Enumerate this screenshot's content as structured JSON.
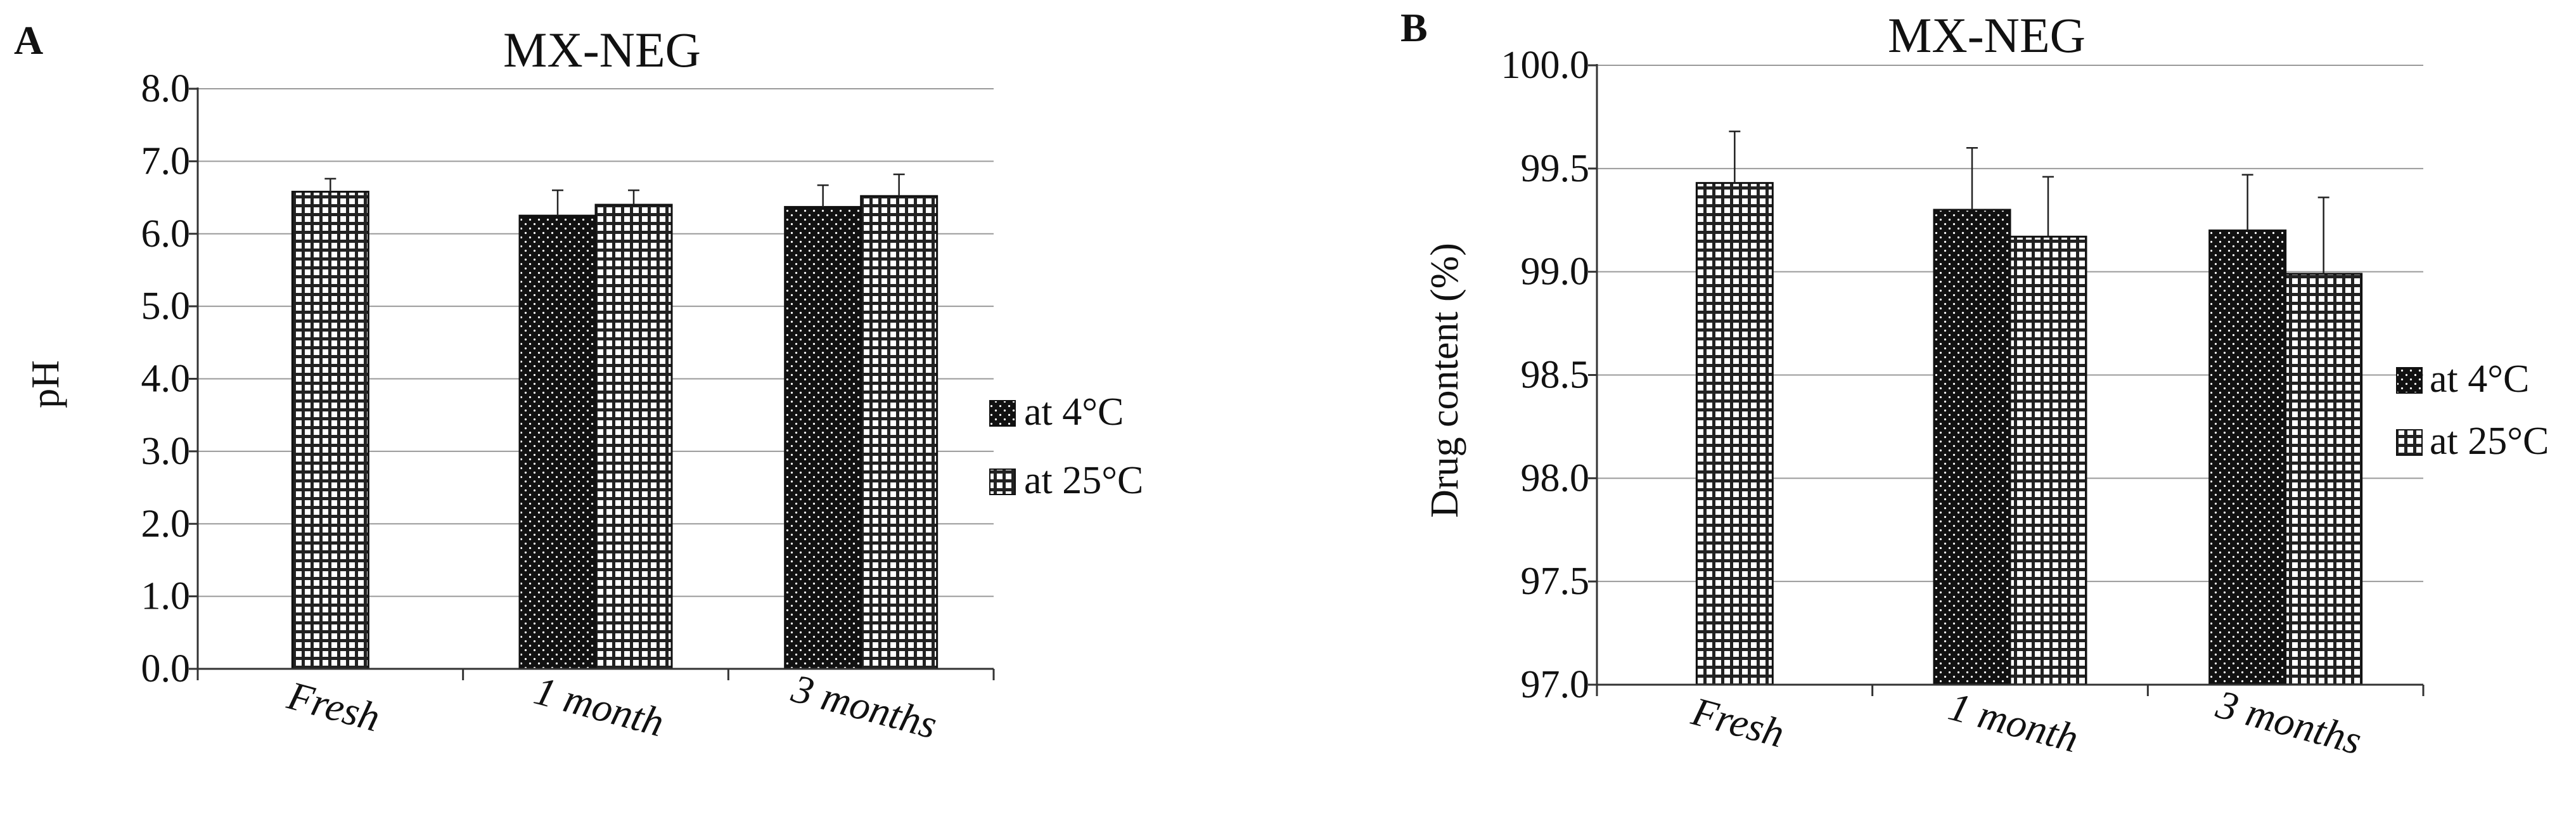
{
  "colors": {
    "axis": "#333333",
    "grid": "#9a9a9a",
    "cold_fill": "#111111",
    "room_fill": "#ffffff"
  },
  "chart_data": [
    {
      "type": "bar",
      "panel_label": "A",
      "title": "MX-NEG",
      "xlabel": "",
      "ylabel": "pH",
      "ylim": [
        0.0,
        8.0
      ],
      "yticks": [
        "0.0",
        "1.0",
        "2.0",
        "3.0",
        "4.0",
        "5.0",
        "6.0",
        "7.0",
        "8.0"
      ],
      "grid": true,
      "categories": [
        "Fresh",
        "1 month",
        "3 months"
      ],
      "series": [
        {
          "name": "at 4°C",
          "values": [
            null,
            6.25,
            6.37
          ],
          "errors": [
            null,
            0.35,
            0.3
          ]
        },
        {
          "name": "at 25°C",
          "values": [
            6.58,
            6.4,
            6.52
          ],
          "errors": [
            0.18,
            0.2,
            0.3
          ]
        }
      ],
      "legend": [
        "at 4°C",
        "at 25°C"
      ],
      "legend_position": "right"
    },
    {
      "type": "bar",
      "panel_label": "B",
      "title": "MX-NEG",
      "xlabel": "",
      "ylabel": "Drug content (%)",
      "ylim": [
        97.0,
        100.0
      ],
      "yticks": [
        "97.0",
        "97.5",
        "98.0",
        "98.5",
        "99.0",
        "99.5",
        "100.0"
      ],
      "grid": true,
      "categories": [
        "Fresh",
        "1 month",
        "3 months"
      ],
      "series": [
        {
          "name": "at 4°C",
          "values": [
            null,
            99.3,
            99.2
          ],
          "errors": [
            null,
            0.3,
            0.27
          ]
        },
        {
          "name": "at 25°C",
          "values": [
            99.43,
            99.17,
            98.99
          ],
          "errors": [
            0.25,
            0.29,
            0.37
          ]
        }
      ],
      "legend": [
        "at 4°C",
        "at 25°C"
      ],
      "legend_position": "right"
    }
  ]
}
